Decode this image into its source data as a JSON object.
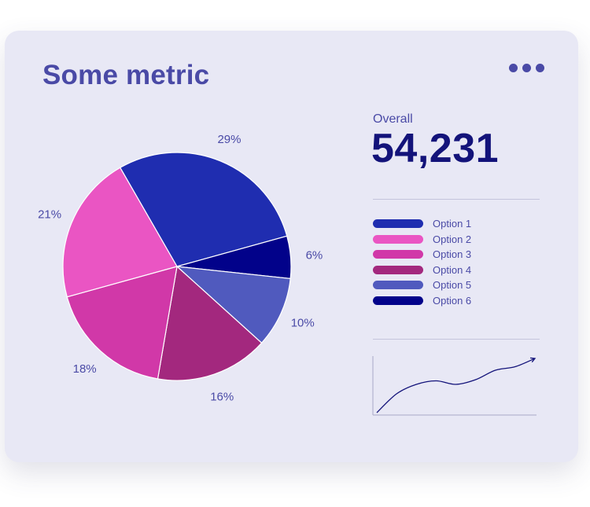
{
  "card": {
    "title": "Some metric",
    "menu_icon": "more-horizontal-icon"
  },
  "summary": {
    "label": "Overall",
    "value": "54,231"
  },
  "colors": {
    "card_bg": "#e8e8f5",
    "title": "#4a4aa6",
    "value": "#13137a"
  },
  "chart_data": [
    {
      "type": "pie",
      "categories": [
        "Option 1",
        "Option 6",
        "Option 5",
        "Option 4",
        "Option 3",
        "Option 2"
      ],
      "values": [
        29,
        6,
        10,
        16,
        18,
        21
      ],
      "labels": [
        "29%",
        "6%",
        "10%",
        "16%",
        "18%",
        "21%"
      ],
      "colors": [
        "#1f2db0",
        "#02028a",
        "#505abe",
        "#a3287e",
        "#d138a8",
        "#ea55c3"
      ],
      "start_direction": "top, slightly left of center",
      "legend_position": "right"
    },
    {
      "type": "line",
      "x": [
        0,
        1,
        2,
        3,
        4,
        5,
        6,
        7,
        8
      ],
      "values": [
        0,
        1.6,
        2.4,
        2.7,
        2.4,
        2.8,
        3.6,
        3.9,
        4.6
      ],
      "axes": "left and bottom lines only, no ticks",
      "end_marker": "arrow"
    }
  ],
  "legend": {
    "items": [
      {
        "label": "Option 1",
        "color": "#1f2db0"
      },
      {
        "label": "Option 2",
        "color": "#ea55c3"
      },
      {
        "label": "Option 3",
        "color": "#d138a8"
      },
      {
        "label": "Option 4",
        "color": "#a3287e"
      },
      {
        "label": "Option 5",
        "color": "#505abe"
      },
      {
        "label": "Option 6",
        "color": "#02028a"
      }
    ]
  }
}
